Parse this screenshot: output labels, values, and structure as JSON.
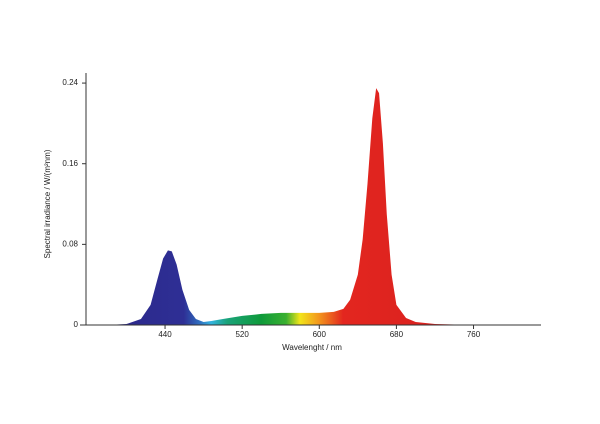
{
  "chart_data": {
    "type": "area",
    "xlabel": "Wavelenght / nm",
    "ylabel": "Spectral irradiance / W/(m²nm)",
    "x": [
      380,
      400,
      415,
      425,
      432,
      438,
      443,
      447,
      452,
      458,
      465,
      472,
      480,
      488,
      500,
      520,
      540,
      560,
      580,
      600,
      615,
      625,
      632,
      640,
      645,
      650,
      655,
      659,
      662,
      666,
      670,
      675,
      680,
      690,
      700,
      720,
      740,
      780
    ],
    "values": [
      0,
      0.001,
      0.006,
      0.02,
      0.045,
      0.066,
      0.074,
      0.073,
      0.06,
      0.035,
      0.015,
      0.006,
      0.003,
      0.004,
      0.006,
      0.009,
      0.011,
      0.012,
      0.012,
      0.012,
      0.013,
      0.016,
      0.025,
      0.05,
      0.085,
      0.14,
      0.205,
      0.235,
      0.23,
      0.18,
      0.11,
      0.05,
      0.02,
      0.007,
      0.003,
      0.001,
      0.0005,
      0
    ],
    "xlim": [
      358,
      830
    ],
    "xticks": [
      440,
      520,
      600,
      680,
      760
    ],
    "ylim": [
      0,
      0.25
    ],
    "yticks": [
      0,
      0.08,
      0.16,
      0.24
    ],
    "grid": false
  }
}
